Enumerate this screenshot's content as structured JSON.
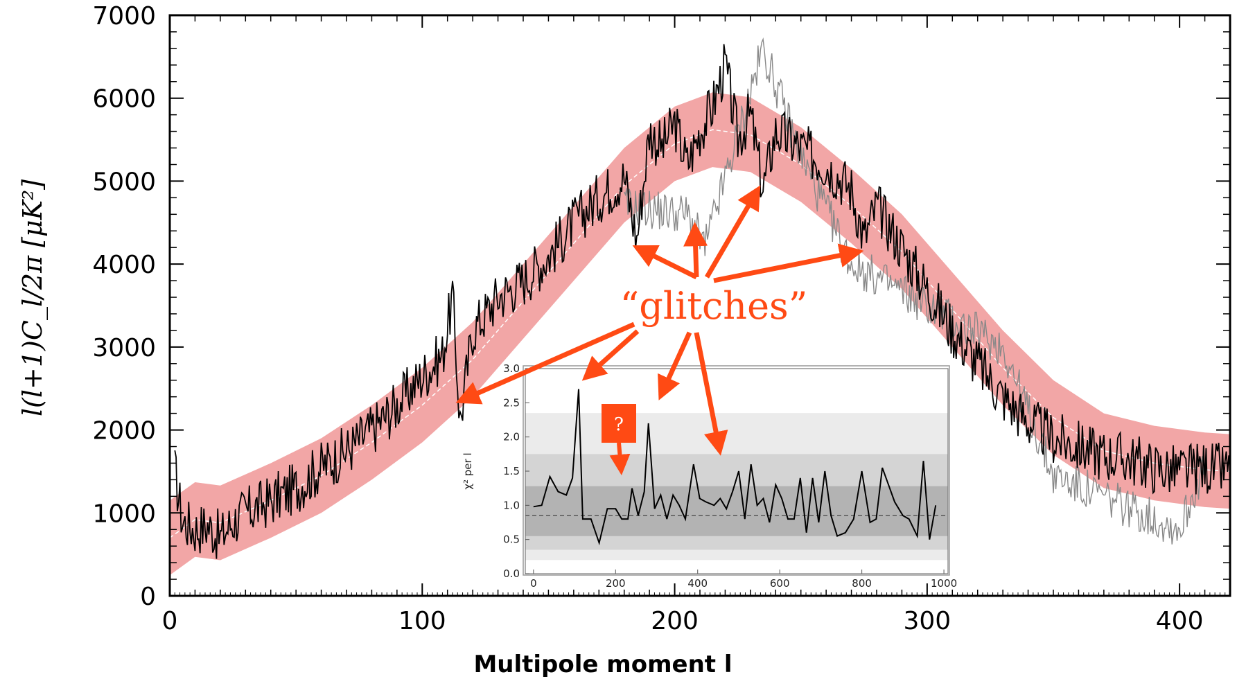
{
  "chart_data": [
    {
      "type": "line",
      "title": "",
      "xlabel": "Multipole moment l",
      "ylabel": "l(l+1)C_l/2π [μK²]",
      "xlim": [
        0,
        420
      ],
      "ylim": [
        0,
        7000
      ],
      "x_ticks": [
        "0",
        "100",
        "200",
        "300",
        "400"
      ],
      "y_ticks": [
        "0",
        "1000",
        "2000",
        "3000",
        "4000",
        "5000",
        "6000",
        "7000"
      ],
      "series": [
        {
          "color": "#000000",
          "points": [
            [
              2,
              1500
            ],
            [
              5,
              900
            ],
            [
              10,
              800
            ],
            [
              15,
              850
            ],
            [
              20,
              700
            ],
            [
              25,
              900
            ],
            [
              30,
              1000
            ],
            [
              40,
              1150
            ],
            [
              50,
              1300
            ],
            [
              60,
              1550
            ],
            [
              70,
              1750
            ],
            [
              80,
              2000
            ],
            [
              90,
              2300
            ],
            [
              100,
              2650
            ],
            [
              108,
              2900
            ],
            [
              112,
              3600
            ],
            [
              115,
              2100
            ],
            [
              120,
              3200
            ],
            [
              130,
              3600
            ],
            [
              140,
              3800
            ],
            [
              150,
              4100
            ],
            [
              160,
              4500
            ],
            [
              170,
              4800
            ],
            [
              180,
              5050
            ],
            [
              185,
              4300
            ],
            [
              190,
              5600
            ],
            [
              195,
              5400
            ],
            [
              200,
              5700
            ],
            [
              205,
              5200
            ],
            [
              210,
              5600
            ],
            [
              215,
              5900
            ],
            [
              220,
              6400
            ],
            [
              225,
              5500
            ],
            [
              230,
              5800
            ],
            [
              235,
              4900
            ],
            [
              240,
              5600
            ],
            [
              250,
              5400
            ],
            [
              260,
              5200
            ],
            [
              270,
              4900
            ],
            [
              275,
              4300
            ],
            [
              280,
              4700
            ],
            [
              290,
              4200
            ],
            [
              300,
              3700
            ],
            [
              310,
              3200
            ],
            [
              320,
              2800
            ],
            [
              330,
              2400
            ],
            [
              340,
              2100
            ],
            [
              350,
              1900
            ],
            [
              360,
              1800
            ],
            [
              370,
              1700
            ],
            [
              380,
              1650
            ],
            [
              390,
              1550
            ],
            [
              400,
              1500
            ],
            [
              410,
              1550
            ],
            [
              420,
              1500
            ]
          ]
        },
        {
          "color": "#888888",
          "points": [
            [
              180,
              4700
            ],
            [
              205,
              4600
            ],
            [
              212,
              4200
            ],
            [
              235,
              6600
            ],
            [
              250,
              5300
            ],
            [
              270,
              4000
            ],
            [
              300,
              3500
            ],
            [
              330,
              3000
            ],
            [
              350,
              1450
            ],
            [
              400,
              800
            ],
            [
              410,
              1600
            ]
          ]
        }
      ],
      "band": {
        "color": "#f2a6a6",
        "center": [
          [
            0,
            700
          ],
          [
            10,
            920
          ],
          [
            20,
            880
          ],
          [
            40,
            1150
          ],
          [
            60,
            1450
          ],
          [
            80,
            1850
          ],
          [
            100,
            2300
          ],
          [
            120,
            2850
          ],
          [
            140,
            3550
          ],
          [
            160,
            4250
          ],
          [
            180,
            4950
          ],
          [
            200,
            5450
          ],
          [
            215,
            5620
          ],
          [
            230,
            5560
          ],
          [
            250,
            5200
          ],
          [
            270,
            4700
          ],
          [
            290,
            4150
          ],
          [
            310,
            3450
          ],
          [
            330,
            2750
          ],
          [
            350,
            2150
          ],
          [
            370,
            1750
          ],
          [
            390,
            1600
          ],
          [
            410,
            1520
          ],
          [
            420,
            1500
          ]
        ],
        "half_width": 450
      },
      "annotations": {
        "label": "“glitches”",
        "arrow_targets_data": [
          [
            115,
            2350
          ],
          [
            185,
            4200
          ],
          [
            208,
            4450
          ],
          [
            233,
            4900
          ],
          [
            273,
            4150
          ]
        ],
        "arrow_targets_inset": [
          [
            310,
            2.6
          ],
          [
            420,
            2.2
          ]
        ],
        "question_mark": "?",
        "question_target_inset": [
          180,
          1.5
        ]
      }
    },
    {
      "type": "line",
      "title": "",
      "xlabel": "",
      "ylabel": "χ² per l",
      "xlim": [
        -20,
        1010
      ],
      "ylim": [
        0,
        3.0
      ],
      "x_ticks": [
        "0",
        "200",
        "400",
        "600",
        "800",
        "1000"
      ],
      "y_ticks": [
        "0.0",
        "0.5",
        "1.0",
        "1.5",
        "2.0",
        "2.5",
        "3.0"
      ],
      "reference_line": 0.85,
      "bands": [
        {
          "range": [
            0.2,
            2.35
          ],
          "color": "#ebebeb"
        },
        {
          "range": [
            0.35,
            1.75
          ],
          "color": "#d4d4d4"
        },
        {
          "range": [
            0.55,
            1.28
          ],
          "color": "#b3b3b3"
        }
      ],
      "series": [
        {
          "color": "#000000",
          "points": [
            [
              0,
              0.98
            ],
            [
              20,
              1.0
            ],
            [
              40,
              1.42
            ],
            [
              60,
              1.2
            ],
            [
              80,
              1.15
            ],
            [
              95,
              1.4
            ],
            [
              110,
              2.7
            ],
            [
              120,
              0.8
            ],
            [
              140,
              0.8
            ],
            [
              160,
              0.45
            ],
            [
              180,
              0.95
            ],
            [
              200,
              0.95
            ],
            [
              215,
              0.8
            ],
            [
              230,
              0.8
            ],
            [
              240,
              1.25
            ],
            [
              255,
              0.85
            ],
            [
              270,
              1.2
            ],
            [
              280,
              2.2
            ],
            [
              295,
              0.95
            ],
            [
              310,
              1.15
            ],
            [
              325,
              0.8
            ],
            [
              340,
              1.15
            ],
            [
              355,
              1.0
            ],
            [
              370,
              0.8
            ],
            [
              390,
              1.6
            ],
            [
              405,
              1.1
            ],
            [
              420,
              1.05
            ],
            [
              440,
              1.0
            ],
            [
              455,
              1.1
            ],
            [
              470,
              0.95
            ],
            [
              485,
              1.2
            ],
            [
              500,
              1.5
            ],
            [
              515,
              0.8
            ],
            [
              530,
              1.6
            ],
            [
              545,
              1.0
            ],
            [
              560,
              1.1
            ],
            [
              575,
              0.75
            ],
            [
              590,
              1.3
            ],
            [
              605,
              1.1
            ],
            [
              620,
              0.8
            ],
            [
              635,
              0.8
            ],
            [
              650,
              1.4
            ],
            [
              665,
              0.6
            ],
            [
              680,
              1.4
            ],
            [
              695,
              0.75
            ],
            [
              710,
              1.5
            ],
            [
              725,
              0.85
            ],
            [
              740,
              0.55
            ],
            [
              760,
              0.6
            ],
            [
              780,
              0.8
            ],
            [
              800,
              1.5
            ],
            [
              820,
              0.75
            ],
            [
              835,
              0.8
            ],
            [
              850,
              1.55
            ],
            [
              865,
              1.3
            ],
            [
              880,
              1.05
            ],
            [
              900,
              0.85
            ],
            [
              915,
              0.8
            ],
            [
              935,
              0.55
            ],
            [
              950,
              1.65
            ],
            [
              965,
              0.5
            ],
            [
              980,
              1.0
            ]
          ]
        }
      ]
    }
  ]
}
